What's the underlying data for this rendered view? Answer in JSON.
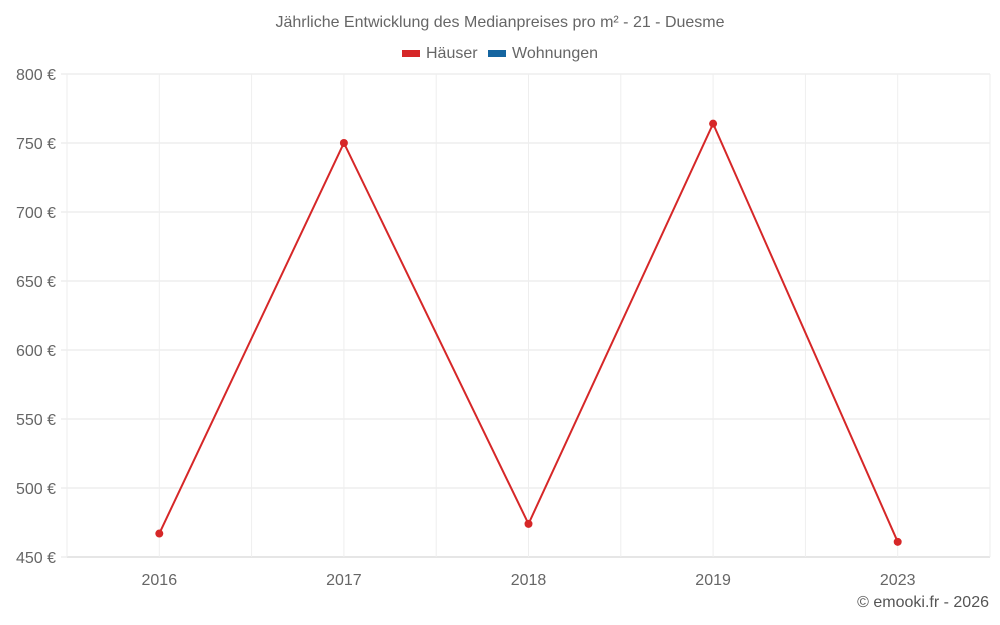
{
  "title": "Jährliche Entwicklung des Medianpreises pro m² - 21 - Duesme",
  "legend": [
    {
      "label": "Häuser",
      "color": "#d62728"
    },
    {
      "label": "Wohnungen",
      "color": "#1565a0"
    }
  ],
  "footer": "© emooki.fr - 2026",
  "chart_data": {
    "type": "line",
    "title": "Jährliche Entwicklung des Medianpreises pro m² - 21 - Duesme",
    "xlabel": "",
    "ylabel": "",
    "categories": [
      "2016",
      "2017",
      "2018",
      "2019",
      "2023"
    ],
    "series": [
      {
        "name": "Häuser",
        "color": "#d62728",
        "values": [
          467,
          750,
          474,
          764,
          461
        ]
      },
      {
        "name": "Wohnungen",
        "color": "#1565a0",
        "values": []
      }
    ],
    "yticks": [
      "800 €",
      "750 €",
      "700 €",
      "650 €",
      "600 €",
      "550 €",
      "500 €",
      "450 €"
    ],
    "ytick_values": [
      800,
      750,
      700,
      650,
      600,
      550,
      500,
      450
    ],
    "ylim": [
      450,
      800
    ],
    "grid": true,
    "legend_position": "top"
  }
}
